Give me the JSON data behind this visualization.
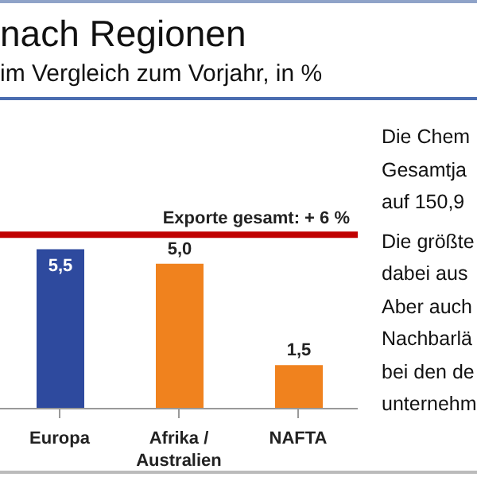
{
  "chart_data": {
    "type": "bar",
    "title": "nach Regionen",
    "subtitle": "im Vergleich zum Vorjahr, in %",
    "categories": [
      "Europa",
      "Afrika / Australien",
      "NAFTA"
    ],
    "values": [
      5.5,
      5.0,
      1.5
    ],
    "colors": [
      "#2e4a9e",
      "#f0821e",
      "#f0821e"
    ],
    "data_labels": true,
    "value_labels": [
      "5,5",
      "5,0",
      "1,5"
    ],
    "ref_lines": [
      {
        "axis": "y",
        "value": 6,
        "label": "Exporte gesamt: + 6 %",
        "color": "#c00000"
      }
    ],
    "annotations": [
      "Die Chem",
      "Gesamtja",
      "auf 150,9",
      "Die größte",
      "dabei aus",
      "Aber auch",
      "Nachbarlä",
      "bei den de",
      "unternehm"
    ],
    "grid": false
  }
}
